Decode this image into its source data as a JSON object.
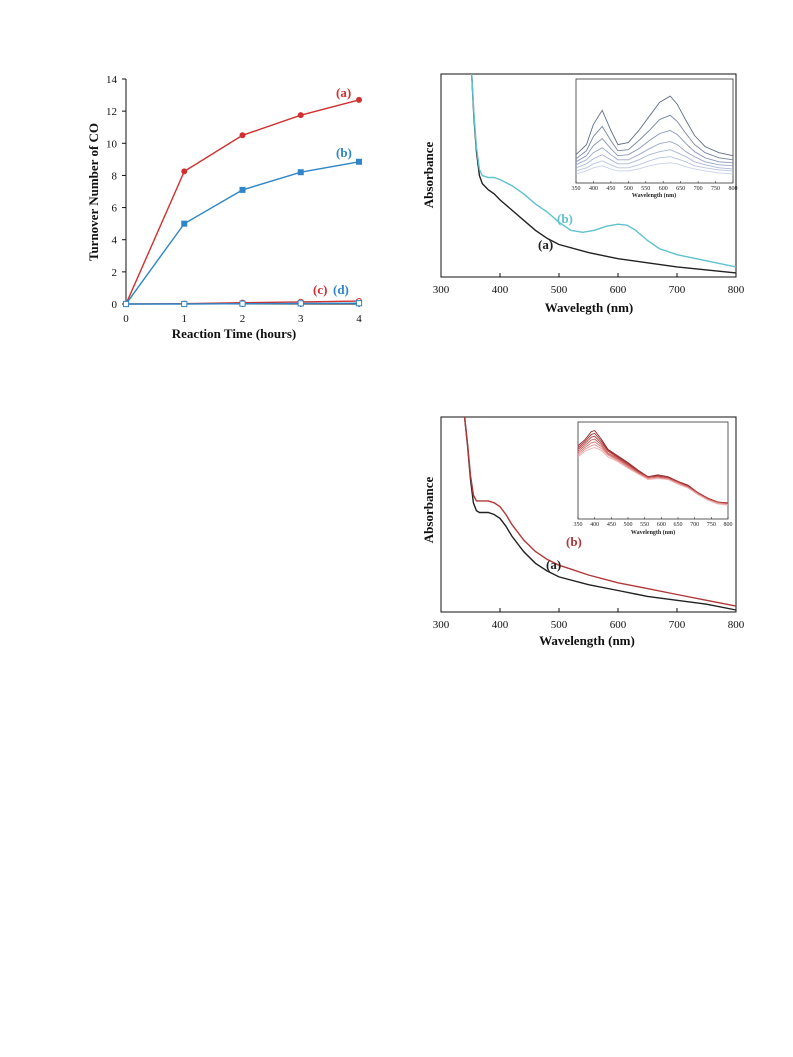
{
  "colors": {
    "red": "#d03030",
    "blue": "#2e86c8",
    "black": "#222222",
    "cyan": "#5ec2cf",
    "gray_blue": [
      "#5f6e86",
      "#7484a0",
      "#8797b6",
      "#9aa9c8",
      "#aab8d6",
      "#b8c5e0",
      "#c6d2ea"
    ],
    "reds": [
      "#8e2323",
      "#a23030",
      "#b84343",
      "#c95a5a",
      "#d97676",
      "#e69494",
      "#efb0b0"
    ]
  },
  "chart_data": [
    {
      "id": "ton",
      "type": "line",
      "xlabel": "Reaction Time (hours)",
      "ylabel": "Turnover Number of CO",
      "xlim": [
        0,
        4
      ],
      "ylim": [
        0,
        14
      ],
      "xticks": [
        "0",
        "1",
        "2",
        "3",
        "4"
      ],
      "yticks": [
        "0",
        "2",
        "4",
        "6",
        "8",
        "10",
        "12",
        "14"
      ],
      "x": [
        0,
        1,
        2,
        3,
        4
      ],
      "series": [
        {
          "name": "(a)",
          "values": [
            0,
            8.25,
            10.5,
            11.75,
            12.7
          ],
          "marker": "circle",
          "color": "#d03030"
        },
        {
          "name": "(b)",
          "values": [
            0,
            5.0,
            7.1,
            8.2,
            8.85
          ],
          "marker": "square",
          "color": "#2e86c8"
        },
        {
          "name": "(c)",
          "values": [
            0,
            0.02,
            0.08,
            0.13,
            0.18
          ],
          "marker": "open-circle",
          "color": "#d03030"
        },
        {
          "name": "(d)",
          "values": [
            0,
            0.0,
            0.02,
            0.04,
            0.05
          ],
          "marker": "open-square",
          "color": "#2e86c8"
        }
      ]
    },
    {
      "id": "uv1",
      "type": "line",
      "xlabel": "Wavelegth (nm)",
      "ylabel": "Absorbance",
      "xlim": [
        300,
        800
      ],
      "ylim": [
        0,
        1
      ],
      "xticks": [
        "300",
        "400",
        "500",
        "600",
        "700",
        "800"
      ],
      "series": [
        {
          "name": "(a)",
          "color": "#222222",
          "x": [
            352,
            356,
            360,
            365,
            370,
            380,
            390,
            400,
            420,
            440,
            460,
            480,
            500,
            550,
            600,
            650,
            700,
            750,
            800
          ],
          "values": [
            1.0,
            0.78,
            0.62,
            0.5,
            0.46,
            0.43,
            0.41,
            0.38,
            0.33,
            0.28,
            0.23,
            0.19,
            0.16,
            0.12,
            0.09,
            0.07,
            0.05,
            0.035,
            0.02
          ]
        },
        {
          "name": "(b)",
          "color": "#5ec2cf",
          "x": [
            352,
            356,
            360,
            365,
            370,
            380,
            390,
            400,
            420,
            440,
            460,
            480,
            500,
            520,
            540,
            560,
            580,
            600,
            615,
            630,
            650,
            670,
            700,
            750,
            800
          ],
          "values": [
            1.0,
            0.8,
            0.64,
            0.53,
            0.5,
            0.49,
            0.49,
            0.48,
            0.45,
            0.41,
            0.36,
            0.32,
            0.27,
            0.23,
            0.22,
            0.23,
            0.25,
            0.26,
            0.255,
            0.23,
            0.18,
            0.14,
            0.11,
            0.08,
            0.05
          ]
        }
      ],
      "inset": {
        "xlabel": "Wavelength (nm)",
        "xticks": [
          "350",
          "400",
          "450",
          "500",
          "550",
          "600",
          "650",
          "700",
          "750",
          "800"
        ],
        "xlim": [
          350,
          800
        ],
        "ylim": [
          0,
          1
        ],
        "x": [
          350,
          380,
          400,
          425,
          450,
          470,
          500,
          530,
          560,
          590,
          620,
          640,
          665,
          690,
          720,
          760,
          800
        ],
        "series": [
          {
            "values": [
              0.28,
              0.38,
              0.58,
              0.72,
              0.52,
              0.38,
              0.4,
              0.52,
              0.66,
              0.8,
              0.86,
              0.78,
              0.62,
              0.47,
              0.36,
              0.3,
              0.27
            ]
          },
          {
            "values": [
              0.24,
              0.32,
              0.46,
              0.56,
              0.42,
              0.32,
              0.33,
              0.42,
              0.52,
              0.63,
              0.67,
              0.61,
              0.49,
              0.38,
              0.3,
              0.25,
              0.23
            ]
          },
          {
            "values": [
              0.21,
              0.27,
              0.37,
              0.44,
              0.34,
              0.27,
              0.28,
              0.34,
              0.42,
              0.49,
              0.52,
              0.48,
              0.39,
              0.31,
              0.25,
              0.21,
              0.2
            ]
          },
          {
            "values": [
              0.18,
              0.23,
              0.3,
              0.35,
              0.28,
              0.23,
              0.23,
              0.28,
              0.34,
              0.39,
              0.41,
              0.38,
              0.31,
              0.26,
              0.21,
              0.18,
              0.17
            ]
          },
          {
            "values": [
              0.15,
              0.19,
              0.24,
              0.28,
              0.23,
              0.19,
              0.19,
              0.23,
              0.28,
              0.31,
              0.33,
              0.3,
              0.26,
              0.21,
              0.18,
              0.15,
              0.14
            ]
          },
          {
            "values": [
              0.12,
              0.15,
              0.19,
              0.22,
              0.18,
              0.15,
              0.15,
              0.18,
              0.22,
              0.25,
              0.26,
              0.24,
              0.21,
              0.17,
              0.15,
              0.13,
              0.12
            ]
          },
          {
            "values": [
              0.09,
              0.12,
              0.15,
              0.17,
              0.14,
              0.12,
              0.12,
              0.14,
              0.17,
              0.19,
              0.2,
              0.19,
              0.16,
              0.14,
              0.12,
              0.1,
              0.09
            ]
          }
        ]
      }
    },
    {
      "id": "uv2",
      "type": "line",
      "xlabel": "Wavelength (nm)",
      "ylabel": "Absorbance",
      "xlim": [
        300,
        800
      ],
      "ylim": [
        0,
        1
      ],
      "xticks": [
        "300",
        "400",
        "500",
        "600",
        "700",
        "800"
      ],
      "series": [
        {
          "name": "(a)",
          "color": "#222222",
          "x": [
            340,
            345,
            350,
            355,
            360,
            365,
            370,
            380,
            390,
            400,
            410,
            420,
            440,
            460,
            480,
            500,
            550,
            600,
            650,
            700,
            750,
            800
          ],
          "values": [
            1.0,
            0.85,
            0.68,
            0.56,
            0.52,
            0.51,
            0.51,
            0.51,
            0.5,
            0.48,
            0.44,
            0.39,
            0.31,
            0.25,
            0.21,
            0.18,
            0.14,
            0.11,
            0.08,
            0.06,
            0.04,
            0.01
          ]
        },
        {
          "name": "(b)",
          "color": "#b03838",
          "x": [
            340,
            345,
            350,
            355,
            360,
            365,
            370,
            380,
            390,
            400,
            410,
            420,
            440,
            460,
            480,
            500,
            520,
            550,
            600,
            650,
            700,
            750,
            800
          ],
          "values": [
            1.0,
            0.86,
            0.7,
            0.6,
            0.57,
            0.57,
            0.57,
            0.57,
            0.56,
            0.54,
            0.5,
            0.45,
            0.37,
            0.31,
            0.27,
            0.24,
            0.22,
            0.19,
            0.15,
            0.12,
            0.09,
            0.06,
            0.03
          ]
        }
      ],
      "inset": {
        "xlabel": "Wavelength (nm)",
        "xticks": [
          "350",
          "400",
          "450",
          "500",
          "550",
          "600",
          "650",
          "700",
          "750",
          "800"
        ],
        "xlim": [
          350,
          800
        ],
        "ylim": [
          0,
          1
        ],
        "x": [
          350,
          370,
          390,
          400,
          420,
          440,
          470,
          500,
          530,
          560,
          590,
          620,
          650,
          680,
          710,
          740,
          770,
          800
        ],
        "series": [
          {
            "values": [
              0.78,
              0.84,
              0.93,
              0.94,
              0.85,
              0.74,
              0.67,
              0.6,
              0.52,
              0.45,
              0.47,
              0.45,
              0.4,
              0.36,
              0.28,
              0.22,
              0.18,
              0.17
            ]
          },
          {
            "values": [
              0.76,
              0.82,
              0.9,
              0.91,
              0.83,
              0.73,
              0.66,
              0.59,
              0.51,
              0.45,
              0.46,
              0.44,
              0.4,
              0.35,
              0.28,
              0.22,
              0.18,
              0.17
            ]
          },
          {
            "values": [
              0.74,
              0.8,
              0.87,
              0.88,
              0.81,
              0.72,
              0.65,
              0.58,
              0.5,
              0.44,
              0.45,
              0.44,
              0.39,
              0.35,
              0.27,
              0.21,
              0.18,
              0.16
            ]
          },
          {
            "values": [
              0.72,
              0.78,
              0.84,
              0.85,
              0.79,
              0.7,
              0.64,
              0.57,
              0.5,
              0.44,
              0.45,
              0.43,
              0.39,
              0.34,
              0.27,
              0.21,
              0.17,
              0.16
            ]
          },
          {
            "values": [
              0.7,
              0.76,
              0.81,
              0.82,
              0.77,
              0.69,
              0.63,
              0.56,
              0.49,
              0.43,
              0.44,
              0.43,
              0.38,
              0.34,
              0.27,
              0.21,
              0.17,
              0.16
            ]
          },
          {
            "values": [
              0.68,
              0.74,
              0.78,
              0.79,
              0.75,
              0.68,
              0.62,
              0.55,
              0.48,
              0.43,
              0.44,
              0.42,
              0.38,
              0.33,
              0.26,
              0.2,
              0.17,
              0.15
            ]
          },
          {
            "values": [
              0.66,
              0.72,
              0.75,
              0.76,
              0.73,
              0.66,
              0.61,
              0.54,
              0.48,
              0.42,
              0.43,
              0.42,
              0.37,
              0.33,
              0.26,
              0.2,
              0.16,
              0.15
            ]
          }
        ]
      }
    }
  ]
}
